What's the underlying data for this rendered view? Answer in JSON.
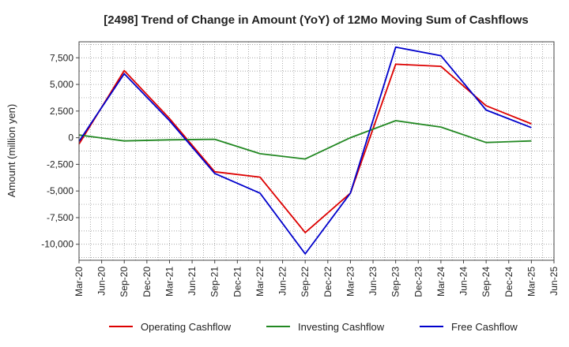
{
  "chart_data": {
    "type": "line",
    "title": "[2498]  Trend of Change in Amount (YoY) of 12Mo Moving Sum of Cashflows",
    "xlabel": "",
    "ylabel": "Amount (million yen)",
    "ylim": [
      -11500,
      9000
    ],
    "yticks": [
      7500,
      5000,
      2500,
      0,
      -2500,
      -5000,
      -7500,
      -10000
    ],
    "ytick_labels": [
      "7,500",
      "5,000",
      "2,500",
      "0",
      "-2,500",
      "-5,000",
      "-7,500",
      "-10,000"
    ],
    "categories": [
      "Mar-20",
      "Jun-20",
      "Sep-20",
      "Dec-20",
      "Mar-21",
      "Jun-21",
      "Sep-21",
      "Dec-21",
      "Mar-22",
      "Jun-22",
      "Sep-22",
      "Dec-22",
      "Mar-23",
      "Jun-23",
      "Sep-23",
      "Dec-23",
      "Mar-24",
      "Jun-24",
      "Sep-24",
      "Dec-24",
      "Mar-25",
      "Jun-25"
    ],
    "series": [
      {
        "name": "Operating Cashflow",
        "color": "#dd0000",
        "values": [
          -600,
          null,
          6300,
          null,
          1800,
          null,
          -3200,
          null,
          -3700,
          null,
          -8900,
          null,
          -5200,
          null,
          6900,
          null,
          6700,
          null,
          3000,
          null,
          1300,
          null
        ]
      },
      {
        "name": "Investing Cashflow",
        "color": "#228822",
        "values": [
          250,
          null,
          -300,
          null,
          -200,
          null,
          -150,
          null,
          -1500,
          null,
          -2000,
          null,
          0,
          null,
          1600,
          null,
          1000,
          null,
          -450,
          null,
          -300,
          null
        ]
      },
      {
        "name": "Free Cashflow",
        "color": "#0000cc",
        "values": [
          -350,
          null,
          6000,
          null,
          1600,
          null,
          -3350,
          null,
          -5200,
          null,
          -10900,
          null,
          -5200,
          null,
          8500,
          null,
          7700,
          null,
          2600,
          null,
          950,
          null
        ]
      }
    ],
    "grid": true,
    "legend_position": "bottom"
  }
}
